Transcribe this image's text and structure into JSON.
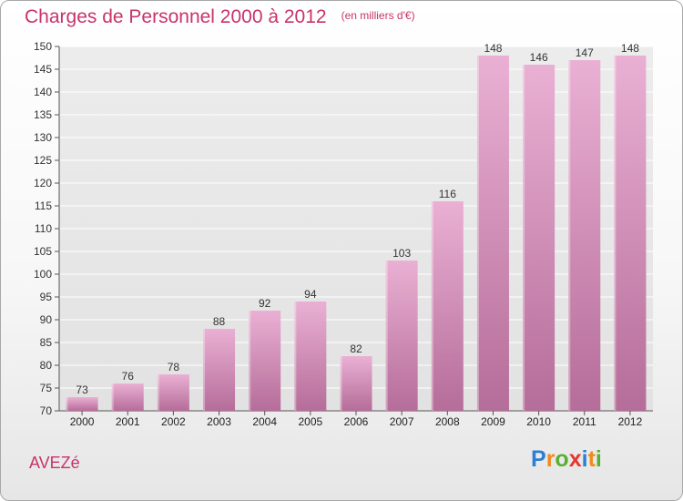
{
  "title": "Charges de Personnel 2000 à 2012",
  "subtitle": "(en milliers d'€)",
  "commune": "AVEZé",
  "logo": {
    "letters": [
      "P",
      "r",
      "o",
      "x",
      "i",
      "t",
      "i"
    ],
    "colors": [
      "#2e7fd1",
      "#f08a1c",
      "#58b031",
      "#e8352d",
      "#2e7fd1",
      "#f08a1c",
      "#58b031"
    ]
  },
  "colors": {
    "bar_light": "#eab0d4",
    "bar_dark": "#b56d99",
    "title": "#c8336b"
  },
  "chart_data": {
    "type": "bar",
    "categories": [
      "2000",
      "2001",
      "2002",
      "2003",
      "2004",
      "2005",
      "2006",
      "2007",
      "2008",
      "2009",
      "2010",
      "2011",
      "2012"
    ],
    "values": [
      73,
      76,
      78,
      88,
      92,
      94,
      82,
      103,
      116,
      148,
      146,
      147,
      148
    ],
    "ylim": [
      70,
      150
    ],
    "yticks": [
      70,
      75,
      80,
      85,
      90,
      95,
      100,
      105,
      110,
      115,
      120,
      125,
      130,
      135,
      140,
      145,
      150
    ],
    "grid": true,
    "xlabel": "",
    "ylabel": ""
  }
}
